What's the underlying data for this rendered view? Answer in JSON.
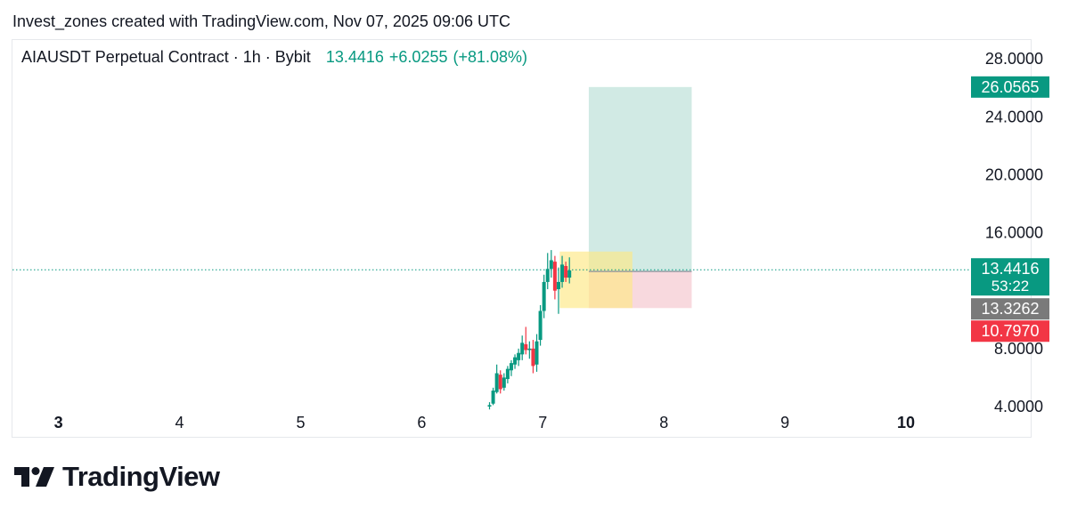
{
  "header": {
    "text": "Invest_zones created with TradingView.com, Nov 07, 2025 09:06 UTC"
  },
  "legend": {
    "symbol": "AIAUSDT Perpetual Contract · 1h · Bybit",
    "last": "13.4416",
    "change": "+6.0255",
    "change_pct": "(+81.08%)"
  },
  "logo": {
    "text": "TradingView",
    "icon": "tradingview-logo-icon"
  },
  "colors": {
    "up": "#089981",
    "down": "#f23645",
    "target_zone": "#cfe9e3",
    "stop_zone": "#f8d7dc",
    "highlight": "#fde884",
    "current_line": "#089981",
    "entry_badge": "#7a7a7a"
  },
  "chart_data": {
    "type": "candlestick",
    "x_axis": {
      "tick_labels": [
        "3",
        "4",
        "5",
        "6",
        "7",
        "8",
        "9",
        "10"
      ],
      "tick_values": [
        3,
        4,
        5,
        6,
        7,
        8,
        9,
        10
      ],
      "range": [
        2.62,
        10.5
      ]
    },
    "y_axis": {
      "tick_labels": [
        "28.0000",
        "24.0000",
        "20.0000",
        "16.0000",
        "8.0000",
        "4.0000"
      ],
      "tick_values": [
        28,
        24,
        20,
        16,
        8,
        4
      ],
      "range": [
        3.2,
        29.3
      ]
    },
    "candles": [
      {
        "t": 6.56,
        "o": 4.0,
        "h": 4.3,
        "l": 3.8,
        "c": 4.1
      },
      {
        "t": 6.59,
        "o": 4.2,
        "h": 5.3,
        "l": 4.1,
        "c": 5.1
      },
      {
        "t": 6.62,
        "o": 5.0,
        "h": 6.9,
        "l": 4.9,
        "c": 6.3
      },
      {
        "t": 6.65,
        "o": 6.2,
        "h": 6.5,
        "l": 4.9,
        "c": 5.2
      },
      {
        "t": 6.68,
        "o": 5.3,
        "h": 6.3,
        "l": 5.1,
        "c": 6.0
      },
      {
        "t": 6.71,
        "o": 5.9,
        "h": 6.8,
        "l": 5.6,
        "c": 6.6
      },
      {
        "t": 6.74,
        "o": 6.5,
        "h": 7.2,
        "l": 6.1,
        "c": 7.0
      },
      {
        "t": 6.77,
        "o": 6.9,
        "h": 7.6,
        "l": 6.6,
        "c": 7.4
      },
      {
        "t": 6.8,
        "o": 7.2,
        "h": 8.0,
        "l": 6.8,
        "c": 7.7
      },
      {
        "t": 6.83,
        "o": 7.6,
        "h": 8.9,
        "l": 7.2,
        "c": 8.4
      },
      {
        "t": 6.86,
        "o": 8.3,
        "h": 9.5,
        "l": 7.6,
        "c": 7.9
      },
      {
        "t": 6.89,
        "o": 7.9,
        "h": 8.5,
        "l": 7.3,
        "c": 8.0
      },
      {
        "t": 6.92,
        "o": 8.0,
        "h": 8.6,
        "l": 6.3,
        "c": 6.8
      },
      {
        "t": 6.95,
        "o": 6.9,
        "h": 9.0,
        "l": 6.4,
        "c": 8.5
      },
      {
        "t": 6.98,
        "o": 8.6,
        "h": 11.0,
        "l": 8.2,
        "c": 10.6
      },
      {
        "t": 7.01,
        "o": 10.6,
        "h": 13.1,
        "l": 10.1,
        "c": 12.6
      },
      {
        "t": 7.04,
        "o": 12.6,
        "h": 14.6,
        "l": 12.1,
        "c": 13.5
      },
      {
        "t": 7.07,
        "o": 13.5,
        "h": 14.8,
        "l": 12.9,
        "c": 14.1
      },
      {
        "t": 7.1,
        "o": 14.0,
        "h": 14.4,
        "l": 11.4,
        "c": 12.0
      },
      {
        "t": 7.13,
        "o": 12.1,
        "h": 13.6,
        "l": 10.4,
        "c": 12.6
      },
      {
        "t": 7.16,
        "o": 12.6,
        "h": 14.4,
        "l": 12.2,
        "c": 13.8
      },
      {
        "t": 7.19,
        "o": 13.7,
        "h": 14.0,
        "l": 12.6,
        "c": 12.9
      },
      {
        "t": 7.22,
        "o": 12.9,
        "h": 14.3,
        "l": 12.5,
        "c": 13.4
      }
    ],
    "highlight_box": {
      "x0": 7.14,
      "x1": 7.74,
      "y0": 10.8,
      "y1": 14.7
    },
    "position": {
      "x0": 7.38,
      "x1": 8.23,
      "target": 26.0565,
      "entry": 13.3262,
      "stop": 10.797
    },
    "current_price": 13.4416,
    "price_badges": [
      {
        "label": "26.0565",
        "value": 26.0565,
        "color": "#089981"
      },
      {
        "label": "13.4416",
        "value": 13.4416,
        "color": "#089981",
        "sub": "53:22"
      },
      {
        "label": "13.3262",
        "value": 13.3262,
        "color": "#7a7a7a"
      },
      {
        "label": "10.7970",
        "value": 10.797,
        "color": "#f23645"
      }
    ]
  }
}
